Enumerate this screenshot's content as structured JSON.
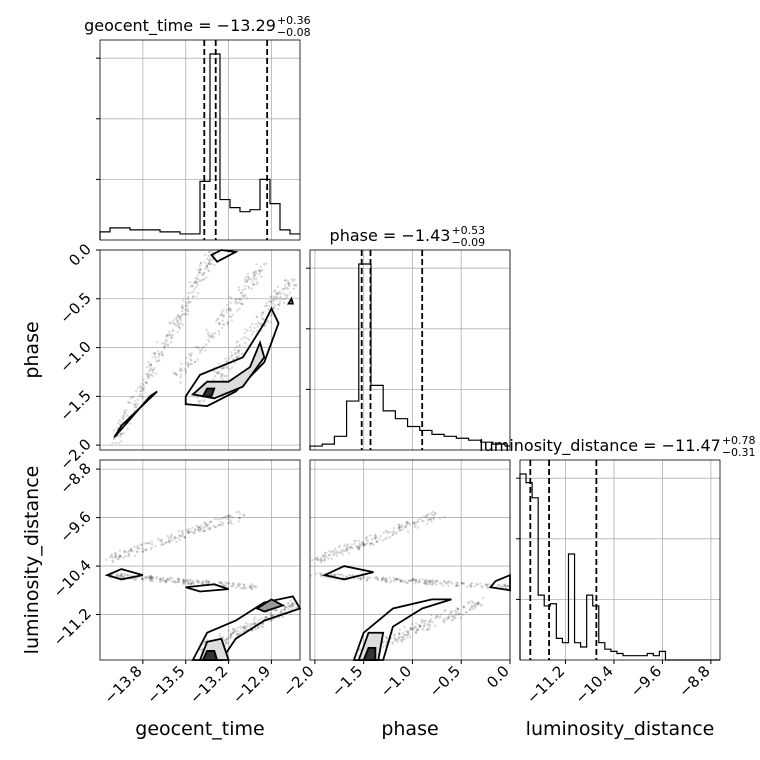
{
  "chart_data": {
    "type": "corner",
    "parameters": [
      "geocent_time",
      "phase",
      "luminosity_distance"
    ],
    "titles": [
      {
        "text": "geocent_time = −13.29",
        "plus": "+0.36",
        "minus": "−0.08"
      },
      {
        "text": "phase = −1.43",
        "plus": "+0.53",
        "minus": "−0.09"
      },
      {
        "text": "luminosity_distance = −11.47",
        "plus": "+0.78",
        "minus": "−0.31"
      }
    ],
    "ranges": {
      "geocent_time": [
        -14.1,
        -12.7
      ],
      "phase": [
        -2.05,
        0.0
      ],
      "luminosity_distance": [
        -11.95,
        -8.65
      ]
    },
    "ticks": {
      "geocent_time": [
        -13.8,
        -13.5,
        -13.2,
        -12.9
      ],
      "phase": [
        -2.0,
        -1.5,
        -1.0,
        -0.5,
        0.0
      ],
      "luminosity_distance": [
        -11.2,
        -10.4,
        -9.6,
        -8.8
      ]
    },
    "tick_labels": {
      "geocent_time": [
        "−13.8",
        "−13.5",
        "−13.2",
        "−12.9"
      ],
      "phase": [
        "−2.0",
        "−1.5",
        "−1.0",
        "−0.5",
        "0.0"
      ],
      "luminosity_distance": [
        "−11.2",
        "−10.4",
        "−9.6",
        "−8.8"
      ]
    },
    "quantiles": {
      "geocent_time": [
        -13.37,
        -13.29,
        -12.93
      ],
      "phase": [
        -1.52,
        -1.43,
        -0.9
      ],
      "luminosity_distance": [
        -11.78,
        -11.47,
        -10.69
      ]
    },
    "histograms": {
      "geocent_time": {
        "edges": [
          -14.1,
          -14.03,
          -13.96,
          -13.89,
          -13.82,
          -13.75,
          -13.68,
          -13.61,
          -13.54,
          -13.47,
          -13.4,
          -13.33,
          -13.26,
          -13.19,
          -13.12,
          -13.05,
          -12.98,
          -12.91,
          -12.84,
          -12.77,
          -12.7
        ],
        "counts": [
          0.04,
          0.06,
          0.06,
          0.05,
          0.05,
          0.05,
          0.04,
          0.04,
          0.03,
          0.03,
          0.29,
          0.92,
          0.2,
          0.16,
          0.14,
          0.15,
          0.3,
          0.18,
          0.05,
          0.03
        ]
      },
      "phase": {
        "edges": [
          -2.05,
          -1.925,
          -1.8,
          -1.675,
          -1.55,
          -1.425,
          -1.3,
          -1.175,
          -1.05,
          -0.925,
          -0.8,
          -0.675,
          -0.55,
          -0.425,
          -0.3,
          -0.175,
          -0.05,
          0.0
        ],
        "counts": [
          0.02,
          0.03,
          0.07,
          0.25,
          0.95,
          0.33,
          0.2,
          0.16,
          0.12,
          0.1,
          0.08,
          0.07,
          0.06,
          0.05,
          0.04,
          0.03,
          0.02
        ]
      },
      "luminosity_distance": {
        "edges": [
          -11.95,
          -11.85,
          -11.75,
          -11.65,
          -11.55,
          -11.45,
          -11.35,
          -11.25,
          -11.15,
          -11.05,
          -10.95,
          -10.85,
          -10.75,
          -10.65,
          -10.55,
          -10.45,
          -10.35,
          -10.25,
          -10.15,
          -10.05,
          -9.95,
          -9.85,
          -9.75,
          -9.65,
          -9.55,
          -9.45,
          -9.35,
          -9.25,
          -9.15,
          -9.05,
          -8.95,
          -8.85,
          -8.75,
          -8.65
        ],
        "counts": [
          0.86,
          0.82,
          0.75,
          0.3,
          0.25,
          0.26,
          0.1,
          0.08,
          0.49,
          0.08,
          0.06,
          0.3,
          0.25,
          0.08,
          0.05,
          0.04,
          0.03,
          0.02,
          0.02,
          0.02,
          0.02,
          0.03,
          0.02,
          0.04,
          0.0,
          0.0,
          0.0,
          0.0,
          0.0,
          0.0,
          0.0,
          0.0,
          0.0
        ]
      }
    },
    "axis_labels": {
      "x": [
        "geocent_time",
        "phase",
        "luminosity_distance"
      ],
      "y": [
        "phase",
        "luminosity_distance"
      ]
    },
    "grid": true
  }
}
